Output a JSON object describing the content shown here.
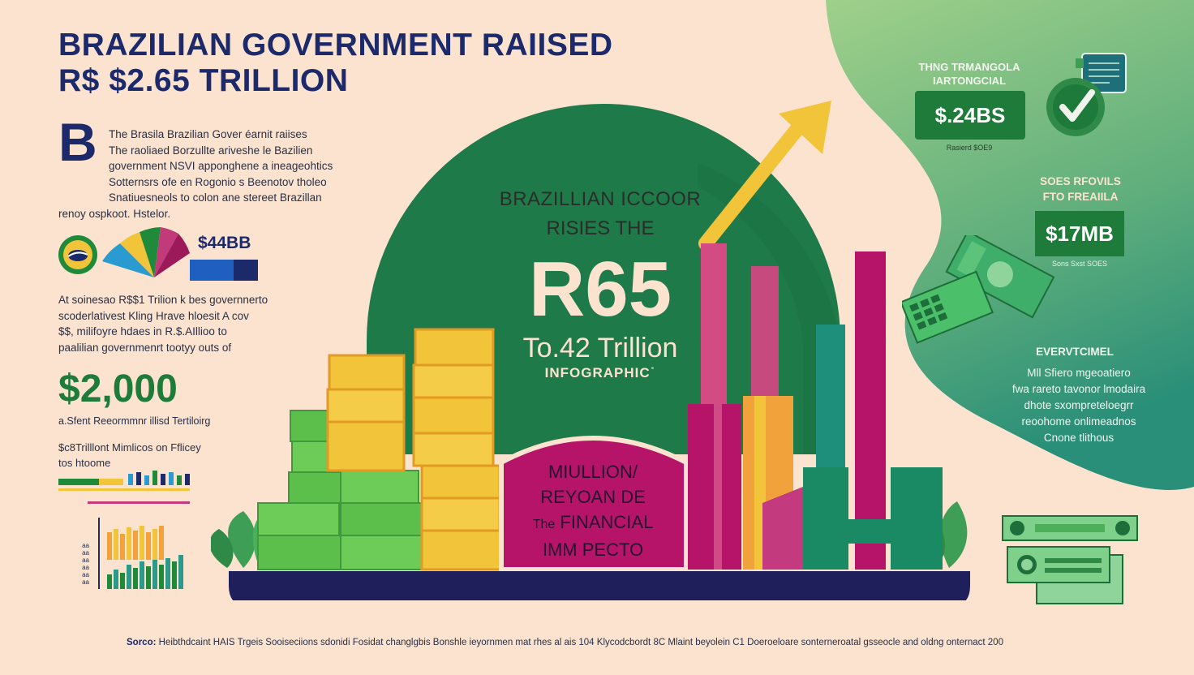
{
  "title": {
    "line1": "BRAZILIAN GOVERNMENT RAIISED",
    "line2": "R$ $2.65 TRILLION"
  },
  "intro": {
    "dropcap": "B",
    "lines": [
      "The Brasila Brazilian Gover éarnit raiises",
      "The raoliaed Borzullte ariveshe le Bazilien",
      "government NSVI apponghene a ineageohtics",
      "Sotternsrs ofe en Rogonio s Beenotov tholeo",
      "Snatiuesneols to colon ane stereet Brazillan",
      "renoy ospkoot. Hstelor."
    ]
  },
  "pie": {
    "label": "$44BB"
  },
  "para2": [
    "At soinesao R$$1 Trilion k bes governnerto",
    "scoderlativest Kling Hrave hloesit A cov",
    "$$, milifoyre hdaes in R.$.AIllioo to",
    "paalilian governmenrt tootyy outs of"
  ],
  "big_amount": "$2,000",
  "caption1": "a.Sfent Reeormmnr illisd Tertiloirg",
  "caption2": [
    "$c8Trilllont Mimlicos on Fflicey",
    "tos htoome"
  ],
  "mini_chart_ticks": [
    "aa",
    "aa",
    "aa",
    "aa",
    "aa",
    "aa"
  ],
  "center": {
    "line1": "BRAZILLIAN ICCOOR",
    "line2": "RISIES THE",
    "line3": "R65",
    "line4": "To.42 Trillion",
    "line5": "INFOGRAPHIC˙"
  },
  "magenta_block": {
    "line1": "MIULLION/",
    "line2": "REYOAN DE",
    "line3_small": "The",
    "line3_big": "FINANCIAL",
    "line4": "IMM PECTO"
  },
  "right_top": {
    "head": [
      "THNG TRMANGOLA",
      "IARTONGCIAL"
    ],
    "amount": "$.24BS",
    "caption": "Rasierd $OE9"
  },
  "right_mid": {
    "head": [
      "SOES RFOVILS",
      "FTO FREAIILA"
    ],
    "amount": "$17MB",
    "caption": "Sons Sxst SOES"
  },
  "right_bottom": {
    "heading": "EVERVTCIMEL",
    "lines": [
      "Mll Sfiero mgeoatiero",
      "fwa rareto tavonor lmodaira",
      "dhote sxompreteloegrr",
      "reoohome onlimeadnos",
      "Cnone tlithous"
    ]
  },
  "source": {
    "label": "Sorco:",
    "text": "Heibthdcaint HAIS Trgeis Sooiseciions sdonidi Fosidat changlgbis Bonshle ieyornmen mat rhes al ais 104 Klycodcbordt 8C Mlaint beyolein C1 Doeroeloare sonterneroatal gsseocle and oldng onternact 200"
  },
  "colors": {
    "navy": "#1c2a6b",
    "green": "#1e7b3a",
    "cream": "#fbe3d0",
    "magenta": "#b51468",
    "yellow": "#f2c43a"
  }
}
